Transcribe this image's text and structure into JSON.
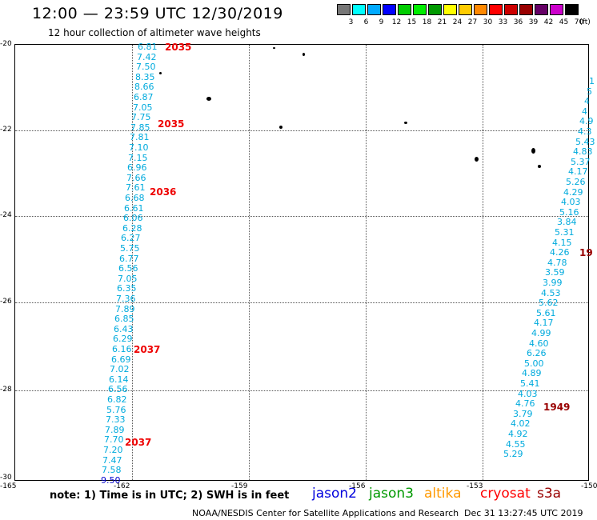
{
  "header": {
    "title": "12:00 — 23:59 UTC 12/30/2019",
    "subtitle": "12 hour collection of altimeter wave heights"
  },
  "colorbar": {
    "colors": [
      "#777777",
      "#00ffff",
      "#00aaff",
      "#0000ff",
      "#00cc00",
      "#00ee00",
      "#009900",
      "#ffff00",
      "#ffcc00",
      "#ff8800",
      "#ff0000",
      "#cc0000",
      "#990000",
      "#660066",
      "#cc00cc",
      "#000000"
    ],
    "labels": [
      "3",
      "6",
      "9",
      "12",
      "15",
      "18",
      "21",
      "24",
      "27",
      "30",
      "33",
      "36",
      "39",
      "42",
      "45",
      "70"
    ],
    "unit": "(ft)"
  },
  "axes": {
    "lat_labels": [
      "-20",
      "-22",
      "-24",
      "-26",
      "-28",
      "-30"
    ],
    "lon_labels": [
      "-165",
      "-162",
      "-159",
      "-156",
      "-153",
      "-150"
    ]
  },
  "tracks": {
    "west_values": [
      "6.81",
      "7.42",
      "7.50",
      "8.35",
      "8.66",
      "6.87",
      "7.05",
      "7.75",
      "7.85",
      "7.81",
      "7.10",
      "7.15",
      "6.96",
      "7.66",
      "7.61",
      "6.68",
      "6.61",
      "6.06",
      "6.28",
      "6.27",
      "5.75",
      "6.77",
      "6.56",
      "7.05",
      "6.35",
      "7.36",
      "7.89",
      "6.85",
      "6.43",
      "6.29",
      "6.16",
      "6.69",
      "7.02",
      "6.14",
      "6.56",
      "6.82",
      "5.76",
      "7.33",
      "7.89",
      "7.70",
      "7.20",
      "7.47",
      "7.58",
      "9.50"
    ],
    "east_values": [
      "1",
      "5",
      "4",
      "4",
      "4.9",
      "4.3",
      "5.43",
      "4.83",
      "5.37",
      "4.17",
      "5.26",
      "4.29",
      "4.03",
      "5.16",
      "3.84",
      "5.31",
      "4.15",
      "4.26",
      "4.78",
      "3.59",
      "3.99",
      "4.53",
      "5.62",
      "5.61",
      "4.17",
      "4.99",
      "4.60",
      "6.26",
      "5.00",
      "4.89",
      "5.41",
      "4.03",
      "4.76",
      "3.79",
      "4.02",
      "4.92",
      "4.55",
      "5.29"
    ],
    "west_times": [
      "2035",
      "2035",
      "2036",
      "2037",
      "2037"
    ],
    "east_times": [
      "19",
      "1949"
    ]
  },
  "footer": {
    "note": "note:  1) Time is in UTC;  2) SWH is in feet",
    "satellites": [
      {
        "name": "jason2",
        "color": "#0000dd"
      },
      {
        "name": "jason3",
        "color": "#009900"
      },
      {
        "name": "altika",
        "color": "#ff9900"
      },
      {
        "name": "cryosat",
        "color": "#ff0000"
      },
      {
        "name": "s3a",
        "color": "#990000"
      }
    ],
    "credit": "NOAA/NESDIS Center for Satellite Applications and Research",
    "timestamp": "Dec 31 13:27:45 UTC 2019"
  },
  "colors": {
    "west_track": "#00aadd",
    "west_last": "#0000cc",
    "east_track": "#00aadd",
    "time_red": "#ee0000",
    "time_dark": "#990000"
  }
}
